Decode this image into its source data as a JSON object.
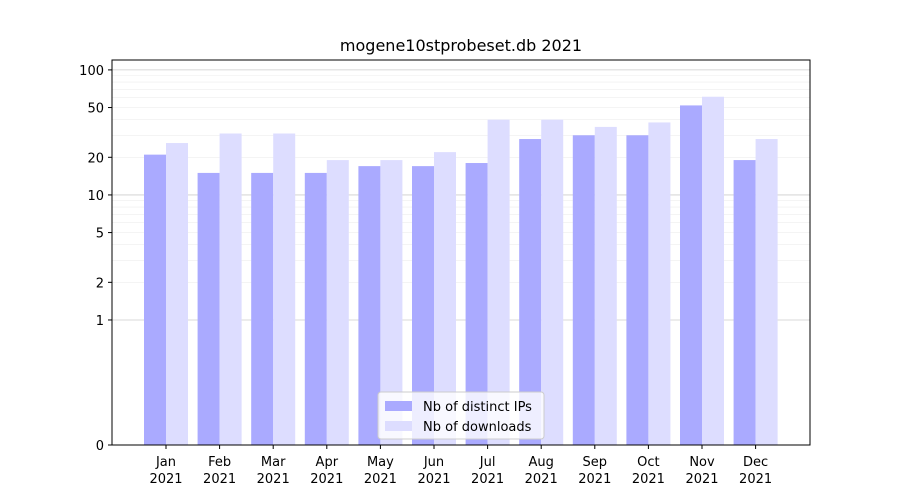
{
  "chart_data": {
    "type": "bar",
    "title": "mogene10stprobeset.db 2021",
    "xlabel": "",
    "ylabel": "",
    "y_scale": "symlog",
    "ylim": [
      0,
      120
    ],
    "y_ticks": [
      0,
      1,
      2,
      5,
      10,
      20,
      50,
      100
    ],
    "grid": "y",
    "legend_position": "bottom-center",
    "categories": [
      [
        "Jan",
        "2021"
      ],
      [
        "Feb",
        "2021"
      ],
      [
        "Mar",
        "2021"
      ],
      [
        "Apr",
        "2021"
      ],
      [
        "May",
        "2021"
      ],
      [
        "Jun",
        "2021"
      ],
      [
        "Jul",
        "2021"
      ],
      [
        "Aug",
        "2021"
      ],
      [
        "Sep",
        "2021"
      ],
      [
        "Oct",
        "2021"
      ],
      [
        "Nov",
        "2021"
      ],
      [
        "Dec",
        "2021"
      ]
    ],
    "series": [
      {
        "name": "Nb of distinct IPs",
        "color": "#aaaaff",
        "values": [
          21,
          15,
          15,
          15,
          17,
          17,
          18,
          28,
          30,
          30,
          52,
          19
        ]
      },
      {
        "name": "Nb of downloads",
        "color": "#ddddff",
        "values": [
          26,
          31,
          31,
          19,
          19,
          22,
          40,
          40,
          35,
          38,
          61,
          28
        ]
      }
    ]
  }
}
